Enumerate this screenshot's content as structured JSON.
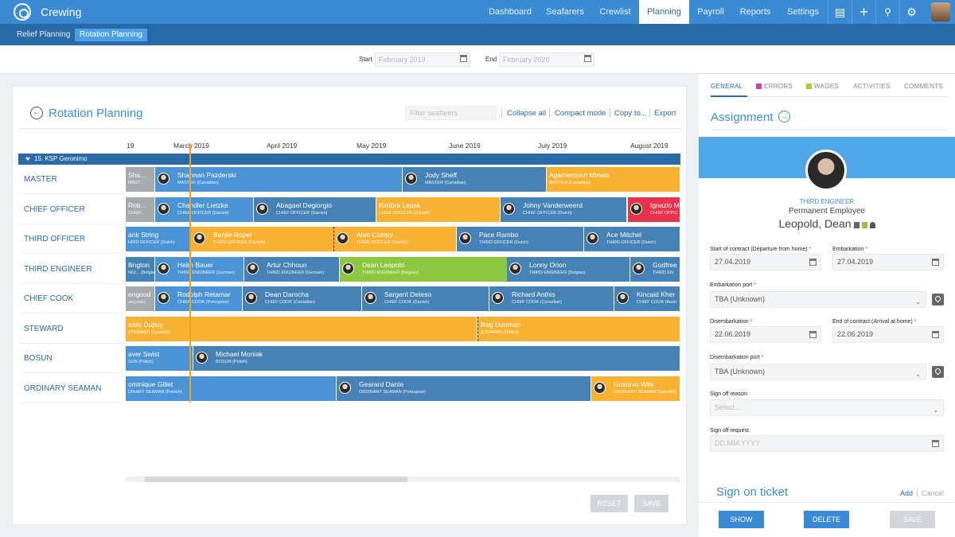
{
  "app": {
    "title": "Crewing",
    "nav": [
      "Dashboard",
      "Seafarers",
      "Crewlist",
      "Planning",
      "Payroll",
      "Reports",
      "Settings"
    ],
    "active_nav": "Planning",
    "icons": [
      "inbox-icon",
      "plus-icon",
      "wrench-icon",
      "bell-icon",
      "user-avatar"
    ]
  },
  "subnav": [
    "Relief Planning",
    "Rotation Planning"
  ],
  "datebar": {
    "start_label": "Start",
    "start_placeholder": "February 2019",
    "end_label": "End",
    "end_placeholder": "February 2020"
  },
  "planning": {
    "title": "Rotation Planning",
    "filter_placeholder": "Filter seafarers",
    "links": [
      "Collapse all",
      "Compact mode",
      "Copy to...",
      "Export"
    ],
    "months": [
      "19",
      "March 2019",
      "April 2019",
      "May 2019",
      "June 2019",
      "July 2019",
      "August 2019"
    ],
    "vessel": "15. KSP Geronimo",
    "ranks": [
      "Master",
      "Chief Officer",
      "Third Officer",
      "Third Engineer",
      "Chief Cook",
      "Steward",
      "Bosun",
      "Ordinary Seaman"
    ],
    "rows": [
      [
        {
          "name": "Sha...",
          "desc": "MAST...",
          "color": "gray"
        },
        {
          "name": "Shannan Pazderski",
          "desc": "MASTER (Canadian)",
          "color": "blue"
        },
        {
          "name": "Jody Sheff",
          "desc": "MASTER (Canadian)",
          "color": "slate"
        },
        {
          "name": "Agamemnon Minato",
          "desc": "MASTER (Canadian)",
          "color": "orange"
        }
      ],
      [
        {
          "name": "Rob...",
          "desc": "CHIEF...",
          "color": "gray"
        },
        {
          "name": "Chandler Lietzke",
          "desc": "CHIEF OFFICER (Danish)",
          "color": "blue"
        },
        {
          "name": "Abagael Degiorgio",
          "desc": "CHIEF OFFICER (Danish)",
          "color": "slate"
        },
        {
          "name": "Kimbra Lepak",
          "desc": "CHIEF OFFICER (Danish)",
          "color": "orange"
        },
        {
          "name": "Johny Vanderweerd",
          "desc": "CHIEF OFFICER (Dutch)",
          "color": "slate"
        },
        {
          "name": "Ignazio M",
          "desc": "CHIEF OFFIC",
          "color": "red"
        }
      ],
      [
        {
          "name": "ank String",
          "desc": "HIRD OFFICER (Dutch)",
          "color": "blue"
        },
        {
          "name": "Benjie Roper",
          "desc": "THIRD OFFICER (Danish)",
          "color": "orange"
        },
        {
          "name": "Alan Colopy",
          "desc": "THIRD OFFICER (Danish)",
          "color": "orange"
        },
        {
          "name": "Pace Rambo",
          "desc": "THIRD OFFICER (Dutch)",
          "color": "slate"
        },
        {
          "name": "Ace Mitchel",
          "desc": "THIRD OFFICER (Dutch)",
          "color": "slate"
        }
      ],
      [
        {
          "name": "llington",
          "desc": "NGI... (Belgian)",
          "color": "slate"
        },
        {
          "name": "Helm Bauer",
          "desc": "THIRD ENGINEER (German)",
          "color": "blue"
        },
        {
          "name": "Artur Chhoun",
          "desc": "THIRD ENGINEER (German)",
          "color": "slate"
        },
        {
          "name": "Dean Leopold",
          "desc": "THIRD ENGINEER (Belgian)",
          "color": "green"
        },
        {
          "name": "Lonny Orion",
          "desc": "THIRD ENGINEER (Belgian)",
          "color": "slate"
        },
        {
          "name": "Godfree",
          "desc": "THIRD EN",
          "color": "slate"
        }
      ],
      [
        {
          "name": "engood",
          "desc": "alaysian)",
          "color": "gray"
        },
        {
          "name": "Rodolph Retamar",
          "desc": "CHIEF COOK (Portugese)",
          "color": "blue"
        },
        {
          "name": "Dean Darocha",
          "desc": "CHIEF COOK (Canadian)",
          "color": "slate"
        },
        {
          "name": "Sargent Deteso",
          "desc": "CHIEF COOK (Danish)",
          "color": "slate"
        },
        {
          "name": "Richard Anthis",
          "desc": "CHIEF COOK (Canadian)",
          "color": "slate"
        },
        {
          "name": "Kincaid Kher",
          "desc": "CHIEF COOK (Austr",
          "color": "slate"
        }
      ],
      [
        {
          "name": "asily Dupuy",
          "desc": "STEWARD (Spanish)",
          "color": "orange"
        },
        {
          "name": "Rog Dunman",
          "desc": "STEWARD (British)",
          "color": "orange"
        }
      ],
      [
        {
          "name": "aver Swist",
          "desc": "SUN (Polish)",
          "color": "blue"
        },
        {
          "name": "Michael Moniak",
          "desc": "BOSUN (Polish)",
          "color": "slate"
        }
      ],
      [
        {
          "name": "ominique Gillet",
          "desc": "DINARY SEAMAN (French)",
          "color": "blue"
        },
        {
          "name": "Gearard Dante",
          "desc": "ORDINARY SEAMAN (Portugese)",
          "color": "slate"
        },
        {
          "name": "Gustavo Wile",
          "desc": "ORDINARY SEAMAN (Spanish)",
          "color": "orange"
        }
      ]
    ],
    "buttons": {
      "reset": "RESET",
      "save": "SAVE"
    }
  },
  "details": {
    "tabs": [
      "GENERAL",
      "ERRORS",
      "WAGES",
      "ACTIVITIES",
      "COMMENTS"
    ],
    "tab_colors": {
      "errors": "#d63fa8",
      "wages": "#a7cc3c"
    },
    "title": "Assignment",
    "rank": "THIRD ENGINEER",
    "employment": "Permanent Employee",
    "name": "Leopold, Dean",
    "fields": {
      "start_contract": {
        "label": "Start of contract (Departure from home)",
        "value": "27.04.2019"
      },
      "embarkation": {
        "label": "Embarkation",
        "value": "27.04.2019"
      },
      "embarkation_port": {
        "label": "Embarkation port",
        "value": "TBA (Unknown)"
      },
      "disembarkation": {
        "label": "Disembarkation",
        "value": "22.06.2019"
      },
      "end_contract": {
        "label": "End of contract (Arrival at home)",
        "value": "22.06.2019"
      },
      "disembarkation_port": {
        "label": "Disembarkation port",
        "value": "TBA (Unknown)"
      },
      "signoff_reason": {
        "label": "Sign off reason",
        "placeholder": "Select..."
      },
      "signoff_request": {
        "label": "Sign off request",
        "placeholder": "DD.MM.YYYY"
      }
    },
    "sign_on_ticket": "Sign on ticket",
    "add": "Add",
    "cancel": "Cancel",
    "buttons": {
      "show": "SHOW",
      "delete": "DELETE",
      "save": "SAVE"
    }
  }
}
